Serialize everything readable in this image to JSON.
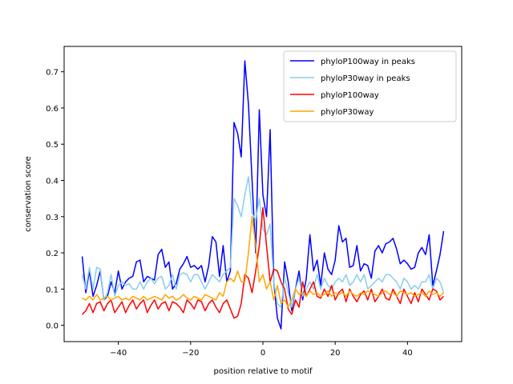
{
  "chart_data": {
    "type": "line",
    "xlabel": "position relative to motif",
    "ylabel": "conservation score",
    "xlim": [
      -55,
      55
    ],
    "ylim": [
      -0.045,
      0.77
    ],
    "x_ticks": [
      -40,
      -20,
      0,
      20,
      40
    ],
    "x_tick_labels": [
      "−40",
      "−20",
      "0",
      "20",
      "40"
    ],
    "y_ticks": [
      0.0,
      0.1,
      0.2,
      0.3,
      0.4,
      0.5,
      0.6,
      0.7
    ],
    "y_tick_labels": [
      "0.0",
      "0.1",
      "0.2",
      "0.3",
      "0.4",
      "0.5",
      "0.6",
      "0.7"
    ],
    "grid": false,
    "legend_position": "top-right",
    "x": [
      -50,
      -49,
      -48,
      -47,
      -46,
      -45,
      -44,
      -43,
      -42,
      -41,
      -40,
      -39,
      -38,
      -37,
      -36,
      -35,
      -34,
      -33,
      -32,
      -31,
      -30,
      -29,
      -28,
      -27,
      -26,
      -25,
      -24,
      -23,
      -22,
      -21,
      -20,
      -19,
      -18,
      -17,
      -16,
      -15,
      -14,
      -13,
      -12,
      -11,
      -10,
      -9,
      -8,
      -7,
      -6,
      -5,
      -4,
      -3,
      -2,
      -1,
      0,
      1,
      2,
      3,
      4,
      5,
      6,
      7,
      8,
      9,
      10,
      11,
      12,
      13,
      14,
      15,
      16,
      17,
      18,
      19,
      20,
      21,
      22,
      23,
      24,
      25,
      26,
      27,
      28,
      29,
      30,
      31,
      32,
      33,
      34,
      35,
      36,
      37,
      38,
      39,
      40,
      41,
      42,
      43,
      44,
      45,
      46,
      47,
      48,
      49,
      50
    ],
    "series": [
      {
        "name": "phyloP100way in peaks",
        "color": "#0000ff",
        "values": [
          0.19,
          0.09,
          0.15,
          0.08,
          0.11,
          0.15,
          0.07,
          0.08,
          0.12,
          0.09,
          0.15,
          0.1,
          0.12,
          0.13,
          0.135,
          0.175,
          0.18,
          0.12,
          0.135,
          0.13,
          0.125,
          0.195,
          0.21,
          0.16,
          0.175,
          0.1,
          0.115,
          0.155,
          0.17,
          0.19,
          0.16,
          0.165,
          0.155,
          0.165,
          0.12,
          0.165,
          0.245,
          0.23,
          0.135,
          0.22,
          0.12,
          0.15,
          0.56,
          0.53,
          0.465,
          0.73,
          0.61,
          0.4,
          0.2,
          0.595,
          0.36,
          0.3,
          0.54,
          0.12,
          0.02,
          -0.01,
          0.175,
          0.12,
          0.04,
          0.1,
          0.15,
          0.07,
          0.13,
          0.25,
          0.15,
          0.18,
          0.11,
          0.2,
          0.155,
          0.14,
          0.18,
          0.275,
          0.23,
          0.24,
          0.16,
          0.165,
          0.22,
          0.15,
          0.17,
          0.165,
          0.13,
          0.205,
          0.22,
          0.2,
          0.225,
          0.23,
          0.24,
          0.21,
          0.17,
          0.18,
          0.17,
          0.155,
          0.16,
          0.2,
          0.215,
          0.195,
          0.25,
          0.11,
          0.15,
          0.195,
          0.26
        ]
      },
      {
        "name": "phyloP30way in peaks",
        "color": "#87ceeb",
        "values": [
          0.14,
          0.1,
          0.16,
          0.1,
          0.16,
          0.155,
          0.07,
          0.09,
          0.14,
          0.08,
          0.11,
          0.12,
          0.11,
          0.115,
          0.1,
          0.1,
          0.12,
          0.1,
          0.12,
          0.13,
          0.115,
          0.13,
          0.135,
          0.1,
          0.11,
          0.14,
          0.1,
          0.14,
          0.145,
          0.14,
          0.12,
          0.14,
          0.14,
          0.12,
          0.1,
          0.12,
          0.14,
          0.13,
          0.12,
          0.14,
          0.15,
          0.16,
          0.35,
          0.33,
          0.3,
          0.36,
          0.41,
          0.31,
          0.29,
          0.35,
          0.265,
          0.25,
          0.28,
          0.12,
          0.06,
          0.05,
          0.13,
          0.09,
          0.05,
          0.1,
          0.13,
          0.08,
          0.1,
          0.12,
          0.1,
          0.14,
          0.1,
          0.13,
          0.11,
          0.1,
          0.12,
          0.13,
          0.12,
          0.14,
          0.11,
          0.12,
          0.14,
          0.12,
          0.14,
          0.1,
          0.11,
          0.12,
          0.13,
          0.12,
          0.14,
          0.14,
          0.13,
          0.12,
          0.1,
          0.13,
          0.12,
          0.1,
          0.11,
          0.1,
          0.12,
          0.12,
          0.14,
          0.1,
          0.13,
          0.12,
          0.09
        ]
      },
      {
        "name": "phyloP100way",
        "color": "#ff0000",
        "values": [
          0.03,
          0.04,
          0.06,
          0.035,
          0.06,
          0.065,
          0.04,
          0.06,
          0.07,
          0.035,
          0.05,
          0.065,
          0.035,
          0.055,
          0.07,
          0.045,
          0.06,
          0.07,
          0.035,
          0.055,
          0.07,
          0.045,
          0.06,
          0.065,
          0.04,
          0.065,
          0.06,
          0.05,
          0.035,
          0.07,
          0.06,
          0.045,
          0.07,
          0.065,
          0.04,
          0.06,
          0.07,
          0.05,
          0.035,
          0.06,
          0.07,
          0.045,
          0.02,
          0.025,
          0.06,
          0.14,
          0.13,
          0.09,
          0.15,
          0.22,
          0.325,
          0.22,
          0.12,
          0.155,
          0.15,
          0.12,
          0.1,
          0.045,
          0.03,
          0.07,
          0.05,
          0.12,
          0.08,
          0.1,
          0.12,
          0.08,
          0.075,
          0.1,
          0.08,
          0.11,
          0.07,
          0.09,
          0.1,
          0.065,
          0.1,
          0.08,
          0.065,
          0.085,
          0.095,
          0.07,
          0.1,
          0.065,
          0.08,
          0.1,
          0.075,
          0.07,
          0.1,
          0.08,
          0.06,
          0.1,
          0.08,
          0.06,
          0.09,
          0.065,
          0.1,
          0.085,
          0.07,
          0.1,
          0.095,
          0.07,
          0.08
        ]
      },
      {
        "name": "phyloP30way",
        "color": "#ffa500",
        "values": [
          0.075,
          0.07,
          0.08,
          0.07,
          0.085,
          0.07,
          0.075,
          0.08,
          0.07,
          0.075,
          0.08,
          0.07,
          0.075,
          0.07,
          0.08,
          0.075,
          0.07,
          0.08,
          0.07,
          0.075,
          0.08,
          0.075,
          0.07,
          0.085,
          0.075,
          0.08,
          0.07,
          0.075,
          0.085,
          0.075,
          0.07,
          0.08,
          0.075,
          0.07,
          0.085,
          0.08,
          0.075,
          0.07,
          0.09,
          0.08,
          0.12,
          0.13,
          0.12,
          0.15,
          0.12,
          0.12,
          0.2,
          0.3,
          0.22,
          0.12,
          0.14,
          0.1,
          0.12,
          0.07,
          0.11,
          0.06,
          0.07,
          0.05,
          0.07,
          0.1,
          0.085,
          0.09,
          0.08,
          0.095,
          0.085,
          0.09,
          0.08,
          0.085,
          0.095,
          0.08,
          0.09,
          0.085,
          0.09,
          0.08,
          0.095,
          0.085,
          0.08,
          0.09,
          0.085,
          0.095,
          0.09,
          0.085,
          0.08,
          0.09,
          0.095,
          0.085,
          0.09,
          0.08,
          0.095,
          0.09,
          0.085,
          0.09,
          0.08,
          0.085,
          0.09,
          0.08,
          0.095,
          0.085,
          0.09,
          0.08,
          0.09
        ]
      }
    ]
  }
}
